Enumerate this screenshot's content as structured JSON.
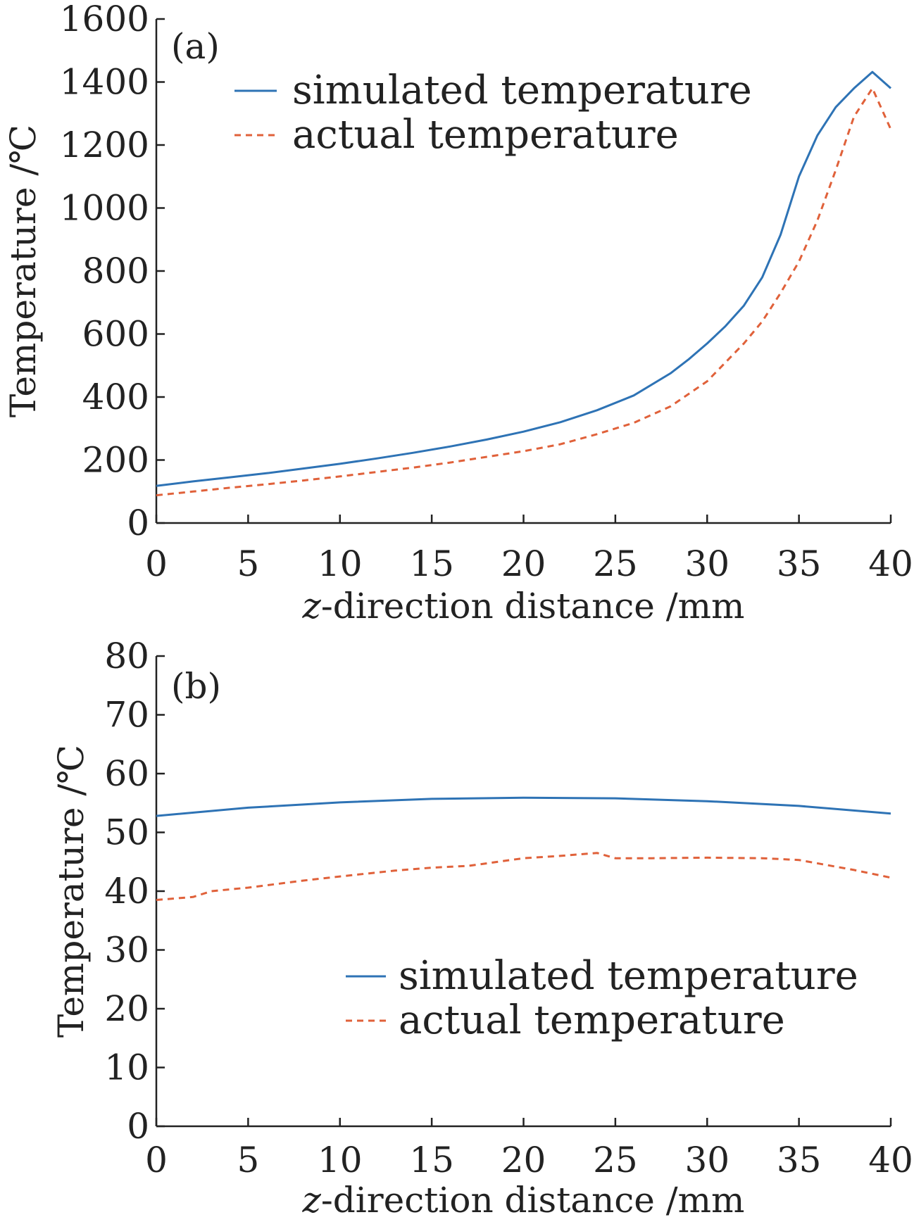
{
  "chart_data": [
    {
      "type": "line",
      "panel_label": "(a)",
      "xlabel_italic": "z",
      "xlabel_rest": "-direction distance /mm",
      "ylabel": "Temperature /℃",
      "xlim": [
        0,
        40
      ],
      "ylim": [
        0,
        1600
      ],
      "xticks": [
        "0",
        "5",
        "10",
        "15",
        "20",
        "25",
        "30",
        "35",
        "40"
      ],
      "yticks": [
        "0",
        "200",
        "400",
        "600",
        "800",
        "1000",
        "1200",
        "1400",
        "1600"
      ],
      "grid": false,
      "legend_placement": "top-center",
      "series": [
        {
          "name": "simulated temperature",
          "color": "#2e73b5",
          "dash": "solid",
          "x": [
            0,
            2,
            4,
            6,
            8,
            10,
            12,
            14,
            16,
            18,
            20,
            22,
            24,
            26,
            28,
            29,
            30,
            31,
            32,
            33,
            34,
            35,
            36,
            37,
            38,
            39,
            40
          ],
          "y": [
            118,
            132,
            145,
            158,
            173,
            188,
            205,
            223,
            243,
            265,
            290,
            320,
            358,
            405,
            475,
            520,
            570,
            625,
            690,
            780,
            915,
            1100,
            1230,
            1320,
            1380,
            1432,
            1380
          ]
        },
        {
          "name": "actual temperature",
          "color": "#e0613a",
          "dash": "dashed",
          "x": [
            0,
            2,
            4,
            6,
            8,
            10,
            12,
            14,
            16,
            18,
            20,
            22,
            24,
            26,
            28,
            30,
            31,
            32,
            33,
            34,
            35,
            36,
            37,
            38,
            39,
            40
          ],
          "y": [
            88,
            100,
            112,
            123,
            135,
            148,
            162,
            176,
            192,
            210,
            228,
            250,
            282,
            318,
            370,
            450,
            510,
            570,
            640,
            730,
            830,
            960,
            1120,
            1290,
            1380,
            1250
          ]
        }
      ]
    },
    {
      "type": "line",
      "panel_label": "(b)",
      "xlabel_italic": "z",
      "xlabel_rest": "-direction distance /mm",
      "ylabel": "Temperature /℃",
      "xlim": [
        0,
        40
      ],
      "ylim": [
        0,
        80
      ],
      "xticks": [
        "0",
        "5",
        "10",
        "15",
        "20",
        "25",
        "30",
        "35",
        "40"
      ],
      "yticks": [
        "0",
        "10",
        "20",
        "30",
        "40",
        "50",
        "60",
        "70",
        "80"
      ],
      "grid": false,
      "legend_placement": "center-right",
      "series": [
        {
          "name": "simulated temperature",
          "color": "#2e73b5",
          "dash": "solid",
          "x": [
            0,
            5,
            10,
            15,
            20,
            25,
            30,
            35,
            40
          ],
          "y": [
            52.8,
            54.2,
            55.1,
            55.7,
            55.9,
            55.8,
            55.3,
            54.5,
            53.2
          ]
        },
        {
          "name": "actual temperature",
          "color": "#e0613a",
          "dash": "dashed",
          "x": [
            0,
            2,
            3,
            5,
            8,
            10,
            13,
            15,
            17,
            20,
            22,
            24,
            25,
            27,
            30,
            33,
            35,
            38,
            40
          ],
          "y": [
            38.5,
            39.0,
            40.0,
            40.6,
            41.8,
            42.5,
            43.5,
            44.0,
            44.3,
            45.6,
            46.0,
            46.5,
            45.6,
            45.6,
            45.7,
            45.6,
            45.3,
            43.6,
            42.3
          ]
        }
      ]
    }
  ]
}
